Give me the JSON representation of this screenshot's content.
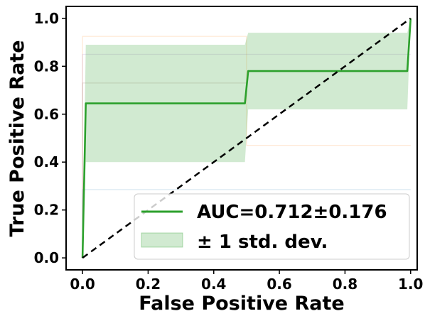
{
  "chart_data": {
    "type": "line",
    "xlabel": "False Positive Rate",
    "ylabel": "True Positive Rate",
    "xlim": [
      -0.05,
      1.02
    ],
    "ylim": [
      -0.05,
      1.05
    ],
    "xticks": [
      0.0,
      0.2,
      0.4,
      0.6,
      0.8,
      1.0
    ],
    "xtick_labels": [
      "0.0",
      "0.2",
      "0.4",
      "0.6",
      "0.8",
      "1.0"
    ],
    "yticks": [
      0.0,
      0.2,
      0.4,
      0.6,
      0.8,
      1.0
    ],
    "ytick_labels": [
      "0.0",
      "0.2",
      "0.4",
      "0.6",
      "0.8",
      "1.0"
    ],
    "grid": false,
    "legend_position": "lower-right",
    "legend": [
      {
        "label": "AUC=0.712±0.176",
        "kind": "line",
        "color": "#2ca02c"
      },
      {
        "label": "± 1 std. dev.",
        "kind": "patch",
        "color": "#2ca02c"
      }
    ],
    "series": [
      {
        "name": "AUC=0.712±0.176",
        "color": "#2ca02c",
        "x": [
          0.0,
          0.01,
          0.495,
          0.505,
          0.99,
          1.0
        ],
        "y": [
          0.0,
          0.645,
          0.645,
          0.78,
          0.78,
          1.0
        ]
      },
      {
        "name": "± 1 std. dev.",
        "type": "band",
        "color": "#2ca02c",
        "opacity": 0.22,
        "x": [
          0.0,
          0.01,
          0.495,
          0.505,
          0.99,
          1.0
        ],
        "upper": [
          0.0,
          0.89,
          0.89,
          0.94,
          0.94,
          1.0
        ],
        "lower": [
          0.0,
          0.4,
          0.4,
          0.62,
          0.62,
          1.0
        ]
      },
      {
        "type": "reference",
        "color": "#000000",
        "dash": true,
        "x": [
          0.0,
          1.0
        ],
        "y": [
          0.0,
          1.0
        ]
      }
    ],
    "faint_folds": [
      {
        "color": "#ff7f0e",
        "x": [
          0.0,
          0.0,
          0.5,
          0.5,
          1.0
        ],
        "y": [
          0.0,
          0.925,
          0.925,
          0.47,
          0.47
        ]
      },
      {
        "color": "#9467bd",
        "x": [
          0.0,
          0.0,
          0.5,
          0.5,
          1.0
        ],
        "y": [
          0.0,
          0.85,
          0.85,
          0.85,
          0.85
        ]
      },
      {
        "color": "#1f77b4",
        "x": [
          0.0,
          0.0,
          0.5,
          0.5,
          1.0
        ],
        "y": [
          0.0,
          0.285,
          0.285,
          0.285,
          0.285
        ]
      },
      {
        "color": "#8c564b",
        "x": [
          0.0,
          0.0,
          0.5
        ],
        "y": [
          0.0,
          0.73,
          0.73
        ]
      }
    ]
  }
}
